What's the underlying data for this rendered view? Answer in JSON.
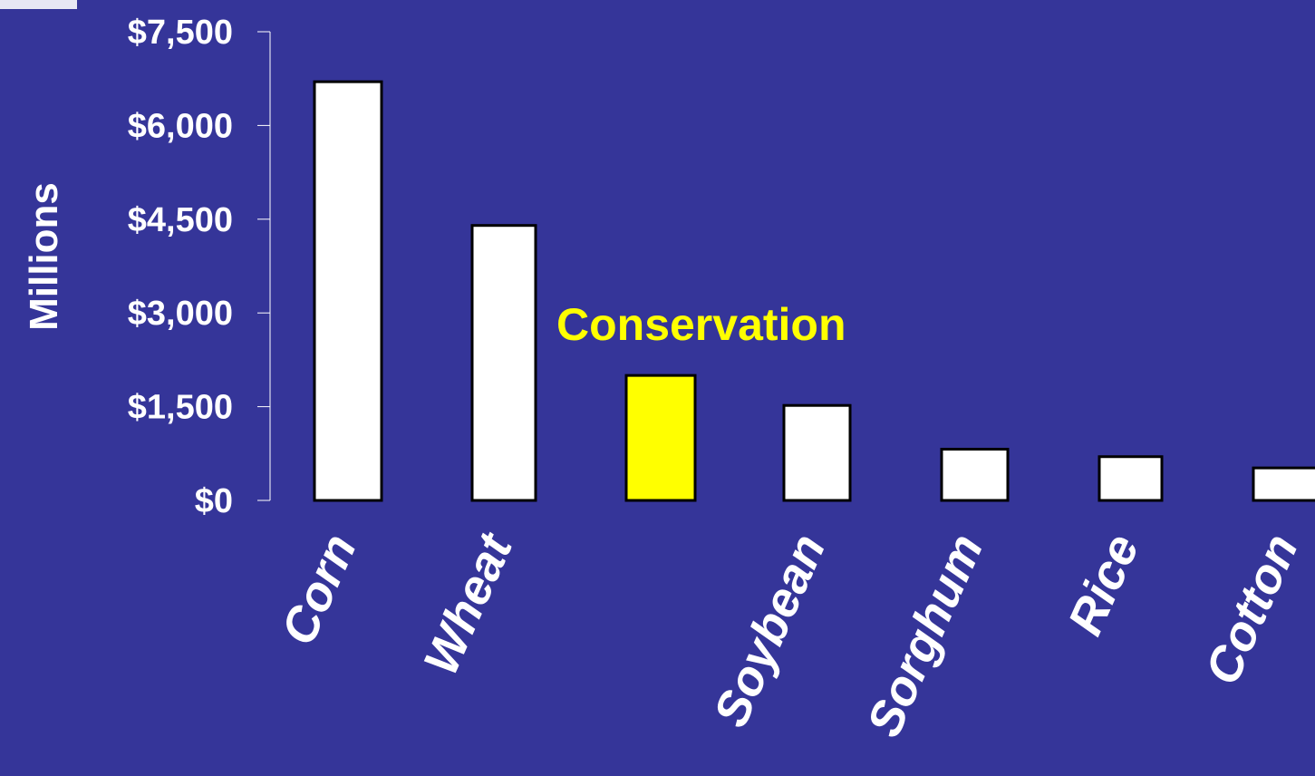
{
  "colors": {
    "background": "#353599",
    "bar_default": "#FFFFFF",
    "bar_highlight": "#FFFF00",
    "bar_stroke": "#000000",
    "text": "#FFFFFF",
    "highlight_text": "#FFFF00",
    "axis": "#FFFFFF"
  },
  "chart_data": {
    "type": "bar",
    "title": "",
    "xlabel": "",
    "ylabel": "Millions",
    "ylim": [
      0,
      7500
    ],
    "y_ticks": [
      0,
      1500,
      3000,
      4500,
      6000,
      7500
    ],
    "y_tick_labels": [
      "$0",
      "$1,500",
      "$3,000",
      "$4,500",
      "$6,000",
      "$7,500"
    ],
    "categories": [
      "Corn",
      "Wheat",
      "",
      "Soybean",
      "Sorghum",
      "Rice",
      "Cotton"
    ],
    "values": [
      6700,
      4400,
      2000,
      1520,
      820,
      700,
      520
    ],
    "highlight_index": 2,
    "annotation": "Conservation",
    "grid": false,
    "legend": "none"
  }
}
